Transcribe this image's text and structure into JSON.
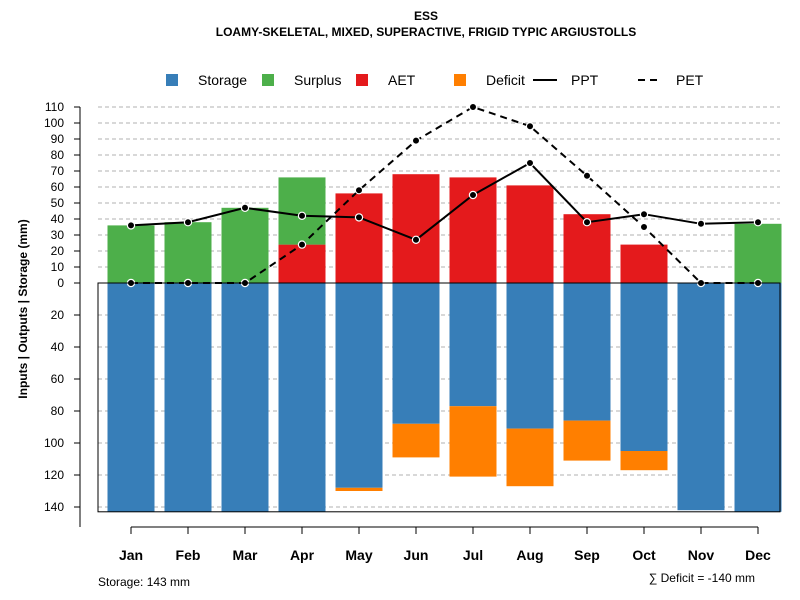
{
  "chart_data": {
    "type": "bar",
    "title": "ESS",
    "subtitle": "LOAMY-SKELETAL, MIXED, SUPERACTIVE, FRIGID TYPIC ARGIUSTOLLS",
    "ylabel": "Inputs | Outputs | Storage    (mm)",
    "categories": [
      "Jan",
      "Feb",
      "Mar",
      "Apr",
      "May",
      "Jun",
      "Jul",
      "Aug",
      "Sep",
      "Oct",
      "Nov",
      "Dec"
    ],
    "upper_ticks": [
      0,
      10,
      20,
      30,
      40,
      50,
      60,
      70,
      80,
      90,
      100,
      110
    ],
    "lower_ticks": [
      20,
      40,
      60,
      80,
      100,
      120,
      140
    ],
    "ylim_upper": [
      0,
      110
    ],
    "ylim_lower": [
      0,
      143
    ],
    "legend": [
      {
        "label": "Storage",
        "kind": "box",
        "color": "#377EB8"
      },
      {
        "label": "Surplus",
        "kind": "box",
        "color": "#4DAF4A"
      },
      {
        "label": "AET",
        "kind": "box",
        "color": "#E41A1C"
      },
      {
        "label": "Deficit",
        "kind": "box",
        "color": "#FF7F00"
      },
      {
        "label": "PPT",
        "kind": "solid",
        "color": "#000000"
      },
      {
        "label": "PET",
        "kind": "dashed",
        "color": "#000000"
      }
    ],
    "series": [
      {
        "name": "Surplus",
        "color": "#4DAF4A",
        "values": [
          36,
          38,
          47,
          42,
          0,
          0,
          0,
          0,
          0,
          0,
          0,
          37
        ]
      },
      {
        "name": "AET",
        "color": "#E41A1C",
        "values": [
          0,
          0,
          0,
          24,
          56,
          68,
          66,
          61,
          43,
          24,
          0,
          0
        ]
      },
      {
        "name": "Storage",
        "color": "#377EB8",
        "values": [
          143,
          143,
          143,
          143,
          128,
          88,
          77,
          91,
          86,
          105,
          142,
          143
        ]
      },
      {
        "name": "Deficit",
        "color": "#FF7F00",
        "values": [
          0,
          0,
          0,
          0,
          2,
          21,
          44,
          36,
          25,
          12,
          0,
          0
        ]
      },
      {
        "name": "PPT",
        "color": "#000000",
        "values": [
          36,
          38,
          47,
          42,
          41,
          27,
          55,
          75,
          38,
          43,
          37,
          38
        ]
      },
      {
        "name": "PET",
        "color": "#000000",
        "values": [
          0,
          0,
          0,
          24,
          58,
          89,
          110,
          98,
          67,
          35,
          0,
          0
        ]
      }
    ],
    "footer_left": "Storage: 143 mm",
    "footer_right": "∑ Deficit = -140 mm"
  }
}
